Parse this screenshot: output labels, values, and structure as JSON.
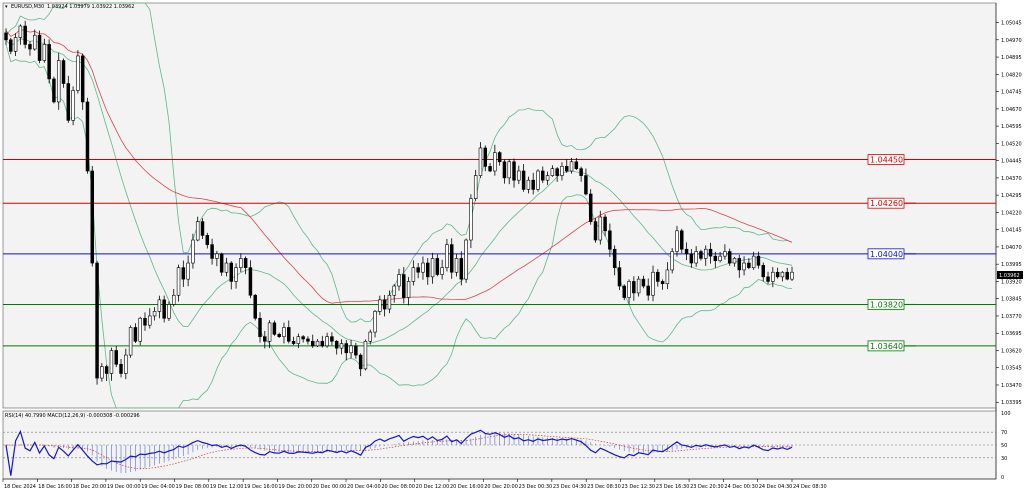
{
  "header": {
    "symbol": "EURUSD,M30",
    "ohlc": "1.03924 1.03979 1.03922 1.03962"
  },
  "subwindow": {
    "label": "RSI(14) 40.7990  MACD(12,26,9) -0.000308 -0.000296",
    "levels": [
      "100",
      "70",
      "50",
      "30",
      "0"
    ]
  },
  "colors": {
    "background": "#f3f3f3",
    "bull": "#ffffff",
    "bear": "#000000",
    "bollinger": "#5fb886",
    "ma": "#d8454c",
    "rsi": "#1515c8",
    "macd_hist": "#6a7fd6",
    "macd_signal": "#d43b3b",
    "resistance": "#d40000",
    "pivot": "#1010d0",
    "support": "#007a00"
  },
  "chart_data": {
    "type": "candlestick",
    "symbol": "EURUSD",
    "timeframe": "M30",
    "ylim": [
      1.0337,
      1.0513
    ],
    "y_ticks": [
      "1.05045",
      "1.04970",
      "1.04895",
      "1.04820",
      "1.04745",
      "1.04670",
      "1.04595",
      "1.04520",
      "1.04445",
      "1.04370",
      "1.04295",
      "1.04220",
      "1.04145",
      "1.04070",
      "1.03995",
      "1.03920",
      "1.03845",
      "1.03770",
      "1.03695",
      "1.03620",
      "1.03545",
      "1.03470",
      "1.03395"
    ],
    "x_ticks": [
      "18 Dec 2024",
      "18 Dec 16:00",
      "18 Dec 20:00",
      "19 Dec 00:00",
      "19 Dec 04:00",
      "19 Dec 08:00",
      "19 Dec 12:00",
      "19 Dec 16:00",
      "19 Dec 20:00",
      "20 Dec 00:00",
      "20 Dec 04:00",
      "20 Dec 08:00",
      "20 Dec 12:00",
      "20 Dec 16:00",
      "20 Dec 20:00",
      "23 Dec 00:30",
      "23 Dec 04:30",
      "23 Dec 08:30",
      "23 Dec 12:30",
      "23 Dec 16:30",
      "23 Dec 20:30",
      "24 Dec 00:30",
      "24 Dec 04:30",
      "24 Dec 08:30"
    ],
    "current_price": "1.03962",
    "levels": [
      {
        "label": "1.04450",
        "value": 1.0445,
        "kind": "resistance"
      },
      {
        "label": "1.04260",
        "value": 1.0426,
        "kind": "resistance"
      },
      {
        "label": "1.04040",
        "value": 1.0404,
        "kind": "pivot"
      },
      {
        "label": "1.03820",
        "value": 1.0382,
        "kind": "support"
      },
      {
        "label": "1.03640",
        "value": 1.0364,
        "kind": "support"
      }
    ],
    "closes": [
      1.0497,
      1.0492,
      1.0498,
      1.0503,
      1.0495,
      1.0493,
      1.0499,
      1.0488,
      1.0495,
      1.048,
      1.047,
      1.0488,
      1.0478,
      1.0462,
      1.0475,
      1.049,
      1.047,
      1.044,
      1.04,
      1.035,
      1.0355,
      1.0352,
      1.0362,
      1.0356,
      1.0352,
      1.036,
      1.0372,
      1.0366,
      1.0376,
      1.0373,
      1.0377,
      1.0379,
      1.0384,
      1.0376,
      1.0382,
      1.0386,
      1.0398,
      1.0393,
      1.04,
      1.041,
      1.0418,
      1.0412,
      1.0408,
      1.0402,
      1.0404,
      1.0396,
      1.04,
      1.0392,
      1.0398,
      1.0402,
      1.0398,
      1.0386,
      1.0376,
      1.0368,
      1.0366,
      1.0374,
      1.0369,
      1.0368,
      1.0372,
      1.0366,
      1.0365,
      1.0368,
      1.0367,
      1.0366,
      1.0364,
      1.0366,
      1.0364,
      1.0368,
      1.0366,
      1.0363,
      1.0365,
      1.0361,
      1.0364,
      1.036,
      1.0354,
      1.0366,
      1.037,
      1.0379,
      1.0384,
      1.038,
      1.0386,
      1.039,
      1.0395,
      1.0385,
      1.0392,
      1.0398,
      1.0396,
      1.04,
      1.0394,
      1.0402,
      1.0395,
      1.0398,
      1.0408,
      1.0396,
      1.0402,
      1.0393,
      1.041,
      1.0428,
      1.0438,
      1.045,
      1.0442,
      1.044,
      1.0448,
      1.0444,
      1.0437,
      1.0444,
      1.0436,
      1.044,
      1.0432,
      1.0436,
      1.0432,
      1.044,
      1.0436,
      1.0438,
      1.0441,
      1.0438,
      1.0442,
      1.044,
      1.0444,
      1.0441,
      1.0438,
      1.043,
      1.0418,
      1.041,
      1.042,
      1.0414,
      1.0406,
      1.0398,
      1.039,
      1.0385,
      1.0392,
      1.0387,
      1.0393,
      1.039,
      1.0386,
      1.0396,
      1.0392,
      1.0391,
      1.0397,
      1.0405,
      1.0414,
      1.0406,
      1.0404,
      1.04,
      1.0405,
      1.0402,
      1.0406,
      1.0403,
      1.0401,
      1.0403,
      1.0405,
      1.04,
      1.0402,
      1.0397,
      1.04,
      1.0398,
      1.0403,
      1.0399,
      1.0394,
      1.0392,
      1.0396,
      1.0394,
      1.0396,
      1.0393,
      1.0396
    ]
  }
}
